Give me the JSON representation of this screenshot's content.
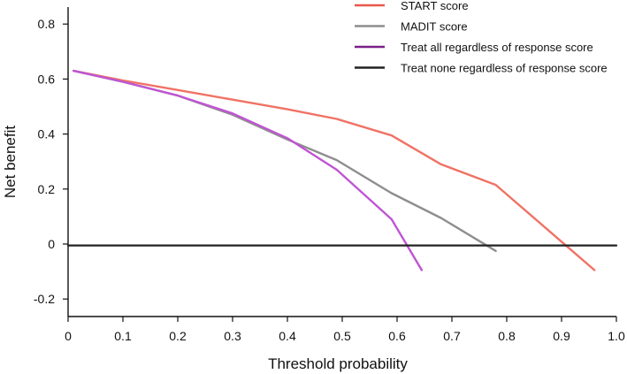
{
  "chart_data": {
    "type": "line",
    "title": "",
    "xlabel": "Threshold probability",
    "ylabel": "Net benefit",
    "xlim": [
      0,
      1.0
    ],
    "ylim": [
      -0.25,
      0.85
    ],
    "x_ticks": [
      "0",
      "0.1",
      "0.2",
      "0.3",
      "0.4",
      "0.5",
      "0.6",
      "0.7",
      "0.8",
      "0.9",
      "1.0"
    ],
    "y_ticks": [
      "-0.2",
      "0",
      "0.2",
      "0.4",
      "0.6",
      "0.8"
    ],
    "legend_position": "top-right",
    "series": [
      {
        "name": "START score",
        "color": "#f07265",
        "x": [
          0.01,
          0.1,
          0.2,
          0.3,
          0.4,
          0.49,
          0.59,
          0.68,
          0.78,
          0.96
        ],
        "y": [
          0.63,
          0.595,
          0.56,
          0.525,
          0.49,
          0.455,
          0.395,
          0.29,
          0.215,
          -0.095
        ]
      },
      {
        "name": "MADIT score",
        "color": "#8e8e8e",
        "x": [
          0.01,
          0.1,
          0.2,
          0.3,
          0.4,
          0.49,
          0.59,
          0.68,
          0.78
        ],
        "y": [
          0.63,
          0.59,
          0.54,
          0.47,
          0.38,
          0.305,
          0.185,
          0.095,
          -0.025
        ]
      },
      {
        "name": "Treat all regardless of response score",
        "color": "#bf55d3",
        "x": [
          0.01,
          0.1,
          0.2,
          0.3,
          0.4,
          0.49,
          0.59,
          0.645
        ],
        "y": [
          0.63,
          0.59,
          0.54,
          0.475,
          0.385,
          0.27,
          0.09,
          -0.095
        ]
      },
      {
        "name": "Treat none regardless of response score",
        "color": "#222222",
        "x": [
          0.0,
          1.0
        ],
        "y": [
          -0.005,
          -0.005
        ]
      }
    ],
    "legend": [
      {
        "label": "START score",
        "color": "#e8584a"
      },
      {
        "label": "MADIT score",
        "color": "#8e8e8e"
      },
      {
        "label": "Treat all regardless of response score",
        "color": "#7a1f86"
      },
      {
        "label": "Treat none regardless of response score",
        "color": "#222222"
      }
    ]
  }
}
